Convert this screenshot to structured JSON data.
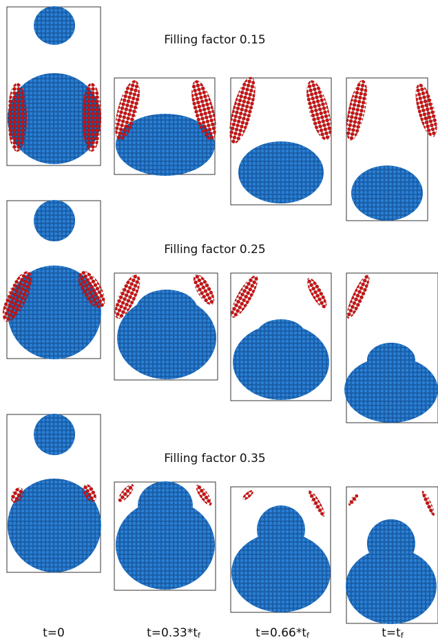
{
  "rows": [
    {
      "title": "Filling factor 0.15"
    },
    {
      "title": "Filling factor 0.25"
    },
    {
      "title": "Filling factor 0.35"
    }
  ],
  "columns": [
    {
      "label": "t=0"
    },
    {
      "label": "t=0.33*t",
      "subscript": "f"
    },
    {
      "label": "t=0.66*t",
      "subscript": "f"
    },
    {
      "label": "t=t",
      "subscript": "f"
    }
  ]
}
